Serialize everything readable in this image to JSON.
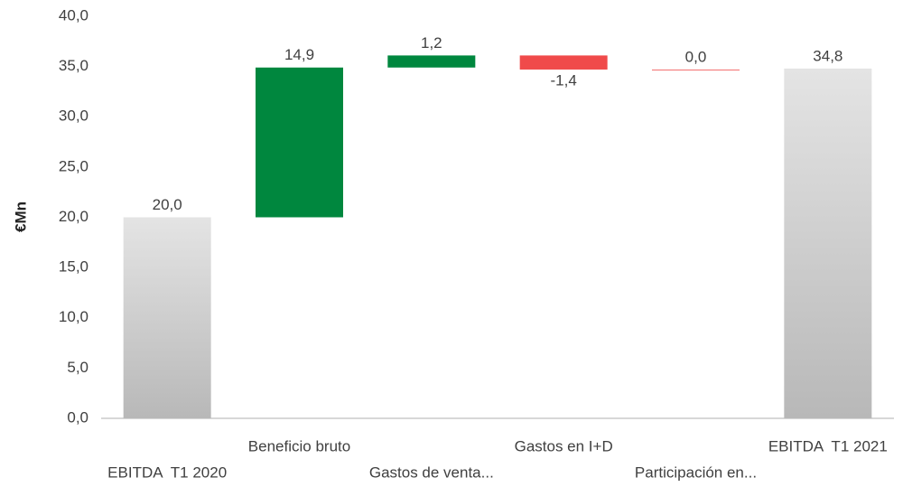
{
  "chart_data": {
    "type": "waterfall",
    "y_label": "€Mn",
    "categories": [
      "EBITDA  T1 2020",
      "Beneficio bruto",
      "Gastos de venta...",
      "Gastos en I+D",
      "Participación en...",
      "EBITDA  T1 2021"
    ],
    "values": [
      20.0,
      14.9,
      1.2,
      -1.4,
      0.0,
      34.8
    ],
    "value_labels": [
      "20,0",
      "14,9",
      "1,2",
      "-1,4",
      "0,0",
      "34,8"
    ],
    "colors": [
      "#b8b8b8",
      "#00873e",
      "#00873e",
      "#f04a4a",
      "#f04a4a",
      "#b8b8b8"
    ],
    "ylim": [
      0,
      40
    ],
    "yticks": [
      {
        "value": 0,
        "label": "0,0"
      },
      {
        "value": 5,
        "label": "5,0"
      },
      {
        "value": 10,
        "label": "10,0"
      },
      {
        "value": 15,
        "label": "15,0"
      },
      {
        "value": 20,
        "label": "20,0"
      },
      {
        "value": 25,
        "label": "25,0"
      },
      {
        "value": 30,
        "label": "30,0"
      },
      {
        "value": 35,
        "label": "35,0"
      },
      {
        "value": 40,
        "label": "40,0"
      }
    ],
    "grid": false
  }
}
